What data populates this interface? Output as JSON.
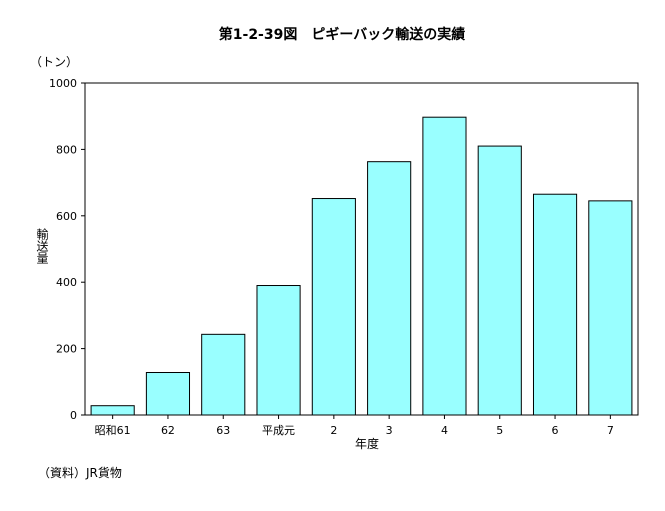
{
  "chart_data": {
    "type": "bar",
    "title": "第1-2-39図　ピギーバック輸送の実績",
    "unit_label": "（トン）",
    "ylabel": "輸送量",
    "xlabel": "年度",
    "categories": [
      "昭和61",
      "62",
      "63",
      "平成元",
      "2",
      "3",
      "4",
      "5",
      "6",
      "7"
    ],
    "values": [
      28,
      128,
      243,
      390,
      652,
      763,
      897,
      810,
      665,
      645
    ],
    "ylim": [
      0,
      1000
    ],
    "yticks": [
      0,
      200,
      400,
      600,
      800,
      1000
    ],
    "grid": false,
    "bar_color": "#99ffff"
  },
  "source": "（資料）JR貨物"
}
